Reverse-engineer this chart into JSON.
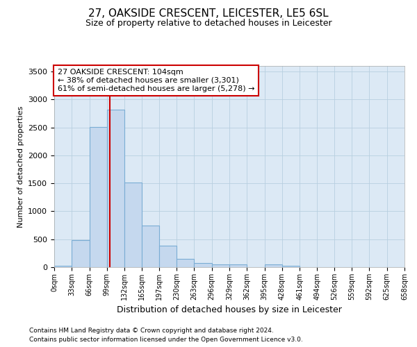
{
  "title": "27, OAKSIDE CRESCENT, LEICESTER, LE5 6SL",
  "subtitle": "Size of property relative to detached houses in Leicester",
  "xlabel": "Distribution of detached houses by size in Leicester",
  "ylabel": "Number of detached properties",
  "footnote1": "Contains HM Land Registry data © Crown copyright and database right 2024.",
  "footnote2": "Contains public sector information licensed under the Open Government Licence v3.0.",
  "annotation_line1": "27 OAKSIDE CRESCENT: 104sqm",
  "annotation_line2": "← 38% of detached houses are smaller (3,301)",
  "annotation_line3": "61% of semi-detached houses are larger (5,278) →",
  "property_size": 104,
  "bin_edges": [
    0,
    33,
    66,
    99,
    132,
    165,
    197,
    230,
    263,
    296,
    329,
    362,
    395,
    428,
    461,
    494,
    526,
    559,
    592,
    625,
    658
  ],
  "bar_heights": [
    20,
    480,
    2510,
    2820,
    1520,
    750,
    390,
    145,
    80,
    55,
    55,
    0,
    55,
    20,
    0,
    0,
    0,
    0,
    0,
    0
  ],
  "bar_color": "#c5d8ee",
  "bar_edge_color": "#7aadd4",
  "red_line_color": "#cc0000",
  "annotation_box_edge": "#cc0000",
  "ax_bg_color": "#dce9f5",
  "background_color": "#ffffff",
  "grid_color": "#b8cfe0",
  "ylim": [
    0,
    3600
  ],
  "yticks": [
    0,
    500,
    1000,
    1500,
    2000,
    2500,
    3000,
    3500
  ]
}
